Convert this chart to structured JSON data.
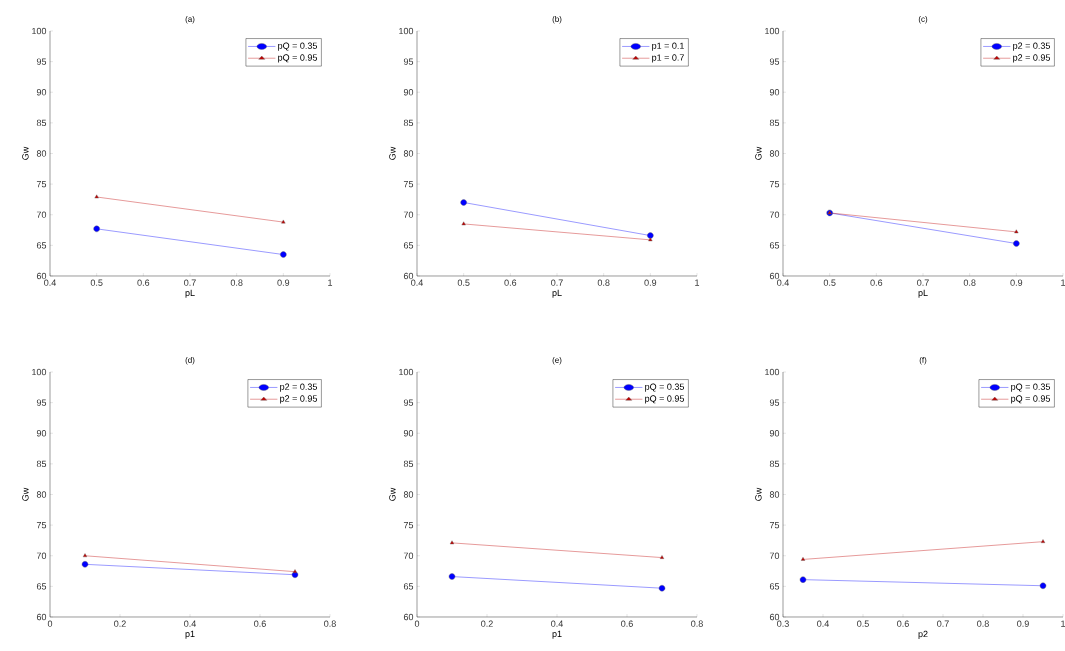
{
  "chart_data": [
    {
      "type": "line",
      "title": "(a)",
      "xlabel": "pL",
      "ylabel": "Gw",
      "x": [
        0.5,
        0.9
      ],
      "xlim": [
        0.4,
        1
      ],
      "xticks": [
        0.4,
        0.5,
        0.6,
        0.7,
        0.8,
        0.9,
        1
      ],
      "ylim": [
        60,
        100
      ],
      "yticks": [
        60,
        65,
        70,
        75,
        80,
        85,
        90,
        95,
        100
      ],
      "legend": "top right",
      "grid": false,
      "line_style": "solid",
      "series": [
        {
          "name": "pQ = 0.35",
          "color": "#0000ff",
          "marker": "circle",
          "values": [
            67.7,
            63.5
          ]
        },
        {
          "name": "pQ = 0.95",
          "color": "#c00000",
          "marker": "triangle",
          "values": [
            72.9,
            68.8
          ]
        }
      ]
    },
    {
      "type": "line",
      "title": "(b)",
      "xlabel": "pL",
      "ylabel": "Gw",
      "x": [
        0.5,
        0.9
      ],
      "xlim": [
        0.4,
        1
      ],
      "xticks": [
        0.4,
        0.5,
        0.6,
        0.7,
        0.8,
        0.9,
        1
      ],
      "ylim": [
        60,
        100
      ],
      "yticks": [
        60,
        65,
        70,
        75,
        80,
        85,
        90,
        95,
        100
      ],
      "legend": "top right",
      "grid": false,
      "line_style": "solid",
      "series": [
        {
          "name": "p1 = 0.1",
          "color": "#0000ff",
          "marker": "circle",
          "values": [
            72.0,
            66.6
          ]
        },
        {
          "name": "p1 = 0.7",
          "color": "#c00000",
          "marker": "triangle",
          "values": [
            68.5,
            65.9
          ]
        }
      ]
    },
    {
      "type": "line",
      "title": "(c)",
      "xlabel": "pL",
      "ylabel": "Gw",
      "x": [
        0.5,
        0.9
      ],
      "xlim": [
        0.4,
        1
      ],
      "xticks": [
        0.4,
        0.5,
        0.6,
        0.7,
        0.8,
        0.9,
        1
      ],
      "ylim": [
        60,
        100
      ],
      "yticks": [
        60,
        65,
        70,
        75,
        80,
        85,
        90,
        95,
        100
      ],
      "legend": "top right",
      "grid": false,
      "line_style": "solid",
      "series": [
        {
          "name": "p2 = 0.35",
          "color": "#0000ff",
          "marker": "circle",
          "values": [
            70.3,
            65.3
          ]
        },
        {
          "name": "p2 = 0.95",
          "color": "#c00000",
          "marker": "triangle",
          "values": [
            70.3,
            67.2
          ]
        }
      ]
    },
    {
      "type": "line",
      "title": "(d)",
      "xlabel": "p1",
      "ylabel": "Gw",
      "x": [
        0.1,
        0.7
      ],
      "xlim": [
        0,
        0.8
      ],
      "xticks": [
        0,
        0.2,
        0.4,
        0.6,
        0.8
      ],
      "ylim": [
        60,
        100
      ],
      "yticks": [
        60,
        65,
        70,
        75,
        80,
        85,
        90,
        95,
        100
      ],
      "legend": "top right",
      "grid": false,
      "line_style": "solid",
      "series": [
        {
          "name": "p2 = 0.35",
          "color": "#0000ff",
          "marker": "circle",
          "values": [
            68.6,
            66.9
          ]
        },
        {
          "name": "p2 = 0.95",
          "color": "#c00000",
          "marker": "triangle",
          "values": [
            70.0,
            67.4
          ]
        }
      ]
    },
    {
      "type": "line",
      "title": "(e)",
      "xlabel": "p1",
      "ylabel": "Gw",
      "x": [
        0.1,
        0.7
      ],
      "xlim": [
        0,
        0.8
      ],
      "xticks": [
        0,
        0.2,
        0.4,
        0.6,
        0.8
      ],
      "ylim": [
        60,
        100
      ],
      "yticks": [
        60,
        65,
        70,
        75,
        80,
        85,
        90,
        95,
        100
      ],
      "legend": "top right",
      "grid": false,
      "line_style": "solid",
      "series": [
        {
          "name": "pQ = 0.35",
          "color": "#0000ff",
          "marker": "circle",
          "values": [
            66.6,
            64.7
          ]
        },
        {
          "name": "pQ = 0.95",
          "color": "#c00000",
          "marker": "triangle",
          "values": [
            72.1,
            69.7
          ]
        }
      ]
    },
    {
      "type": "line",
      "title": "(f)",
      "xlabel": "p2",
      "ylabel": "Gw",
      "x": [
        0.35,
        0.95
      ],
      "xlim": [
        0.3,
        1
      ],
      "xticks": [
        0.3,
        0.4,
        0.5,
        0.6,
        0.7,
        0.8,
        0.9,
        1
      ],
      "ylim": [
        60,
        100
      ],
      "yticks": [
        60,
        65,
        70,
        75,
        80,
        85,
        90,
        95,
        100
      ],
      "legend": "top right",
      "grid": false,
      "line_style": "solid",
      "series": [
        {
          "name": "pQ = 0.35",
          "color": "#0000ff",
          "marker": "circle",
          "values": [
            66.1,
            65.1
          ]
        },
        {
          "name": "pQ = 0.95",
          "color": "#c00000",
          "marker": "triangle",
          "values": [
            69.4,
            72.3
          ]
        }
      ]
    }
  ]
}
